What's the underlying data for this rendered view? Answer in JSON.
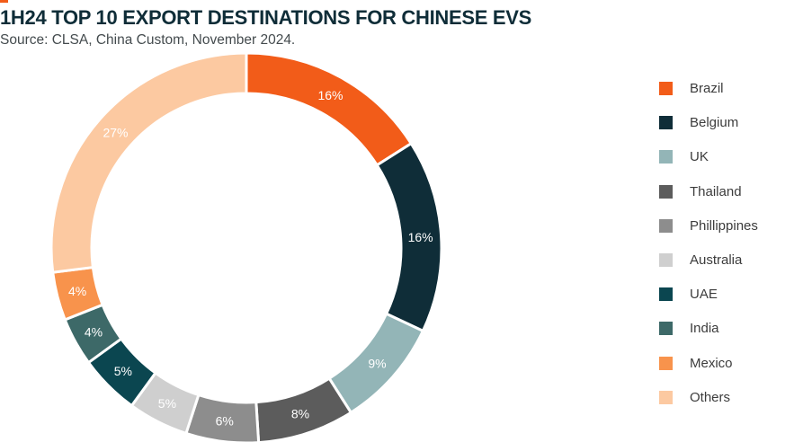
{
  "colors": {
    "accent": "#f25c19",
    "title": "#0f2d38"
  },
  "header": {
    "title": "1H24 TOP 10 EXPORT DESTINATIONS FOR CHINESE EVS",
    "subtitle": "Source: CLSA, China Custom, November 2024."
  },
  "chart_data": {
    "type": "pie",
    "variant": "donut",
    "title": "1H24 TOP 10 EXPORT DESTINATIONS FOR CHINESE EVS",
    "legend_position": "right",
    "slices": [
      {
        "name": "Brazil",
        "value": 16,
        "label": "16%",
        "color": "#f25c19",
        "label_color": "#ffffff"
      },
      {
        "name": "Belgium",
        "value": 16,
        "label": "16%",
        "color": "#0f2d38",
        "label_color": "#ffffff"
      },
      {
        "name": "UK",
        "value": 9,
        "label": "9%",
        "color": "#93b5b7",
        "label_color": "#ffffff"
      },
      {
        "name": "Thailand",
        "value": 8,
        "label": "8%",
        "color": "#5c5c5c",
        "label_color": "#ffffff"
      },
      {
        "name": "Phillippines",
        "value": 6,
        "label": "6%",
        "color": "#8d8d8d",
        "label_color": "#ffffff"
      },
      {
        "name": "Australia",
        "value": 5,
        "label": "5%",
        "color": "#cfcfcf",
        "label_color": "#ffffff"
      },
      {
        "name": "UAE",
        "value": 5,
        "label": "5%",
        "color": "#0b4650",
        "label_color": "#ffffff"
      },
      {
        "name": "India",
        "value": 4,
        "label": "4%",
        "color": "#3d6968",
        "label_color": "#ffffff"
      },
      {
        "name": "Mexico",
        "value": 4,
        "label": "4%",
        "color": "#f8934c",
        "label_color": "#ffffff"
      },
      {
        "name": "Others",
        "value": 27,
        "label": "27%",
        "color": "#fcc9a1",
        "label_color": "#ffffff"
      }
    ]
  }
}
